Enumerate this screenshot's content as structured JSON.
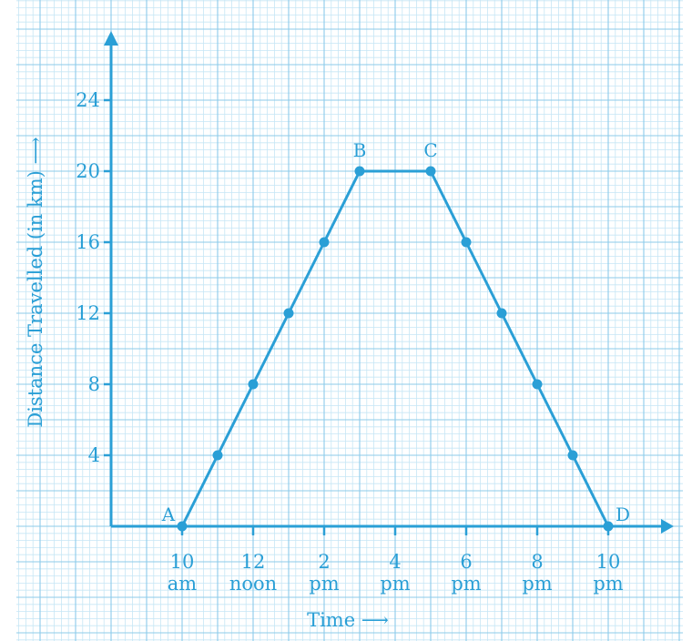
{
  "colors": {
    "accent": "#2a9fd6",
    "grid_minor": "#c6e6f5",
    "grid_major": "#8ccbea",
    "background": "#ffffff"
  },
  "chart_data": {
    "type": "line",
    "title": "",
    "xlabel": "Time ⟶",
    "ylabel": "Distance Travelled (in km) ⟶",
    "x": [
      10,
      11,
      12,
      13,
      14,
      15,
      17,
      18,
      19,
      20,
      21,
      22
    ],
    "series": [
      {
        "values": [
          0,
          4,
          8,
          12,
          16,
          20,
          20,
          16,
          12,
          8,
          4,
          0
        ]
      }
    ],
    "xlim": [
      8,
      23.5
    ],
    "ylim": [
      -1.5,
      28
    ],
    "grid": true,
    "x_ticks": [
      {
        "x": 10,
        "line1": "10",
        "line2": "am"
      },
      {
        "x": 12,
        "line1": "12",
        "line2": "noon"
      },
      {
        "x": 14,
        "line1": "2",
        "line2": "pm"
      },
      {
        "x": 16,
        "line1": "4",
        "line2": "pm"
      },
      {
        "x": 18,
        "line1": "6",
        "line2": "pm"
      },
      {
        "x": 20,
        "line1": "8",
        "line2": "pm"
      },
      {
        "x": 22,
        "line1": "10",
        "line2": "pm"
      }
    ],
    "y_ticks": [
      "4",
      "8",
      "12",
      "16",
      "20",
      "24"
    ],
    "point_labels": [
      {
        "text": "A",
        "x": 10,
        "y": 0,
        "pos": "left"
      },
      {
        "text": "B",
        "x": 15,
        "y": 20,
        "pos": "top"
      },
      {
        "text": "C",
        "x": 17,
        "y": 20,
        "pos": "top"
      },
      {
        "text": "D",
        "x": 22,
        "y": 0,
        "pos": "right"
      }
    ]
  }
}
